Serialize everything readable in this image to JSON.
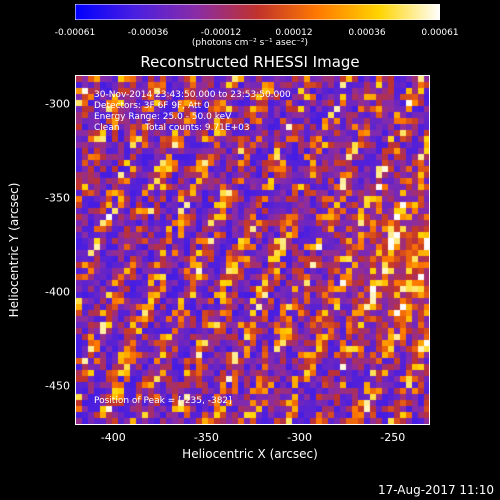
{
  "chart_data": {
    "type": "heatmap",
    "title": "Reconstructed RHESSI Image",
    "xlabel": "Heliocentric X (arcsec)",
    "ylabel": "Heliocentric Y (arcsec)",
    "xlim": [
      -420,
      -230
    ],
    "ylim": [
      -470,
      -285
    ],
    "xticks": [
      "-400",
      "-350",
      "-300",
      "-250"
    ],
    "yticks": [
      "-300",
      "-350",
      "-400",
      "-450"
    ],
    "colorbar": {
      "unit_label": "(photons cm⁻² s⁻¹ asec⁻²)",
      "ticks": [
        "-0.00061",
        "-0.00036",
        "-0.00012",
        "0.00012",
        "0.00036",
        "0.00061"
      ],
      "range": [
        -0.00061,
        0.00061
      ],
      "colors": [
        "#0000ff",
        "#4b1fe0",
        "#8a2ca6",
        "#c0322c",
        "#ff7a00",
        "#ffd400",
        "#ffffff"
      ]
    },
    "annotations": {
      "time_range": "30-Nov-2014 23:43:50.000 to 23:53:50.000",
      "detectors": "Detectors: 3F 6F 9F, Att 0",
      "energy": "Energy Range: 25.0 - 50.0 keV",
      "clean": "Clean",
      "total_counts": "Total counts: 9.71E+03",
      "peak": "Position of Peak = [-235, -382]"
    },
    "peak": {
      "x": -235,
      "y": -382
    },
    "grid": false
  },
  "footer": {
    "date": "17-Aug-2017 11:10"
  }
}
